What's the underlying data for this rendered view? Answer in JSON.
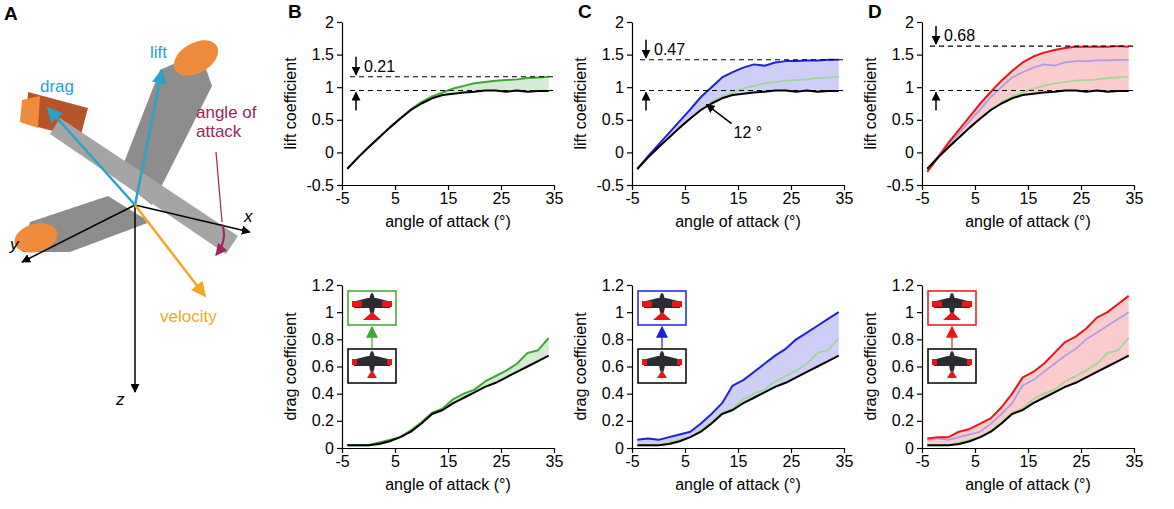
{
  "panel_labels": [
    "A",
    "B",
    "C",
    "D"
  ],
  "diagram": {
    "labels": {
      "drag": "drag",
      "lift": "lift",
      "angle_of_attack": "angle of attack",
      "velocity": "velocity",
      "x": "x",
      "y": "y",
      "z": "z"
    }
  },
  "chart_data": [
    {
      "type": "line",
      "x_label": "angle of attack (°)",
      "y_label": "lift coefficient",
      "x": [
        -4,
        -2,
        0,
        2,
        4,
        6,
        8,
        10,
        12,
        14,
        16,
        18,
        20,
        22,
        24,
        26,
        28,
        30,
        32,
        34
      ],
      "series": [
        {
          "color": "#000000",
          "values": [
            -0.25,
            -0.08,
            0.08,
            0.23,
            0.38,
            0.52,
            0.65,
            0.75,
            0.83,
            0.88,
            0.9,
            0.92,
            0.93,
            0.95,
            0.95,
            0.93,
            0.95,
            0.93,
            0.94,
            0.94
          ]
        },
        {
          "color": "#3fa535",
          "values": [
            -0.25,
            -0.08,
            0.08,
            0.23,
            0.38,
            0.52,
            0.66,
            0.77,
            0.86,
            0.92,
            0.98,
            1.02,
            1.06,
            1.08,
            1.1,
            1.11,
            1.12,
            1.14,
            1.15,
            1.16
          ]
        }
      ],
      "xlim": [
        -5,
        35
      ],
      "xticks": [
        -5,
        5,
        15,
        25,
        35
      ],
      "ylim": [
        -0.5,
        2
      ],
      "yticks": [
        -0.5,
        0,
        0.5,
        1,
        1.5,
        2
      ],
      "annotations": [
        {
          "text": "0.21",
          "y": [
            0.95,
            1.16
          ]
        }
      ]
    },
    {
      "type": "line",
      "x_label": "angle of attack (°)",
      "y_label": "drag coefficient",
      "x": [
        -4,
        -2,
        0,
        2,
        4,
        6,
        8,
        10,
        12,
        14,
        16,
        18,
        20,
        22,
        24,
        26,
        28,
        30,
        32,
        34
      ],
      "series": [
        {
          "color": "#000000",
          "values": [
            0.02,
            0.02,
            0.02,
            0.03,
            0.05,
            0.08,
            0.12,
            0.18,
            0.25,
            0.28,
            0.33,
            0.37,
            0.41,
            0.45,
            0.48,
            0.52,
            0.56,
            0.6,
            0.64,
            0.68
          ]
        },
        {
          "color": "#3fa535",
          "values": [
            0.02,
            0.02,
            0.02,
            0.04,
            0.06,
            0.08,
            0.13,
            0.19,
            0.26,
            0.29,
            0.36,
            0.4,
            0.43,
            0.49,
            0.53,
            0.57,
            0.62,
            0.7,
            0.72,
            0.81
          ]
        }
      ],
      "xlim": [
        -5,
        35
      ],
      "xticks": [
        -5,
        5,
        15,
        25,
        35
      ],
      "ylim": [
        0,
        1.2
      ],
      "yticks": [
        0,
        0.2,
        0.4,
        0.6,
        0.8,
        1,
        1.2
      ]
    },
    {
      "type": "line",
      "x_label": "angle of attack (°)",
      "y_label": "lift coefficient",
      "x": [
        -4,
        -2,
        0,
        2,
        4,
        6,
        8,
        10,
        12,
        14,
        16,
        18,
        20,
        22,
        24,
        26,
        28,
        30,
        32,
        34
      ],
      "series": [
        {
          "color": "#000000",
          "values": [
            -0.25,
            -0.08,
            0.08,
            0.23,
            0.38,
            0.52,
            0.65,
            0.75,
            0.83,
            0.88,
            0.9,
            0.92,
            0.93,
            0.95,
            0.95,
            0.93,
            0.95,
            0.93,
            0.94,
            0.94
          ]
        },
        {
          "color": "#9fd88f",
          "values": [
            -0.25,
            -0.08,
            0.08,
            0.23,
            0.38,
            0.52,
            0.66,
            0.77,
            0.86,
            0.92,
            0.98,
            1.02,
            1.06,
            1.08,
            1.1,
            1.11,
            1.12,
            1.14,
            1.15,
            1.16
          ]
        },
        {
          "color": "#1f1fe0",
          "values": [
            -0.26,
            -0.06,
            0.12,
            0.3,
            0.48,
            0.66,
            0.85,
            1.0,
            1.15,
            1.23,
            1.3,
            1.35,
            1.33,
            1.38,
            1.4,
            1.4,
            1.41,
            1.41,
            1.42,
            1.42
          ]
        }
      ],
      "xlim": [
        -5,
        35
      ],
      "xticks": [
        -5,
        5,
        15,
        25,
        35
      ],
      "ylim": [
        -0.5,
        2
      ],
      "yticks": [
        -0.5,
        0,
        0.5,
        1,
        1.5,
        2
      ],
      "annotations": [
        {
          "text": "0.47",
          "y": [
            0.95,
            1.42
          ]
        },
        {
          "text": "12 °",
          "x": 8.5,
          "y": 0.78
        }
      ]
    },
    {
      "type": "line",
      "x_label": "angle of attack (°)",
      "y_label": "drag coefficient",
      "x": [
        -4,
        -2,
        0,
        2,
        4,
        6,
        8,
        10,
        12,
        14,
        16,
        18,
        20,
        22,
        24,
        26,
        28,
        30,
        32,
        34
      ],
      "series": [
        {
          "color": "#000000",
          "values": [
            0.02,
            0.02,
            0.02,
            0.03,
            0.05,
            0.08,
            0.12,
            0.18,
            0.25,
            0.28,
            0.33,
            0.37,
            0.41,
            0.45,
            0.48,
            0.52,
            0.56,
            0.6,
            0.64,
            0.68
          ]
        },
        {
          "color": "#9fd88f",
          "values": [
            0.02,
            0.02,
            0.02,
            0.04,
            0.06,
            0.08,
            0.13,
            0.19,
            0.26,
            0.29,
            0.36,
            0.4,
            0.43,
            0.49,
            0.53,
            0.57,
            0.62,
            0.7,
            0.72,
            0.81
          ]
        },
        {
          "color": "#1f1fe0",
          "values": [
            0.06,
            0.07,
            0.06,
            0.08,
            0.1,
            0.12,
            0.18,
            0.25,
            0.33,
            0.46,
            0.5,
            0.56,
            0.62,
            0.68,
            0.73,
            0.8,
            0.85,
            0.9,
            0.95,
            1.0
          ]
        }
      ],
      "xlim": [
        -5,
        35
      ],
      "xticks": [
        -5,
        5,
        15,
        25,
        35
      ],
      "ylim": [
        0,
        1.2
      ],
      "yticks": [
        0,
        0.2,
        0.4,
        0.6,
        0.8,
        1,
        1.2
      ]
    },
    {
      "type": "line",
      "x_label": "angle of attack (°)",
      "y_label": "lift coefficient",
      "x": [
        -4,
        -2,
        0,
        2,
        4,
        6,
        8,
        10,
        12,
        14,
        16,
        18,
        20,
        22,
        24,
        26,
        28,
        30,
        32,
        34
      ],
      "series": [
        {
          "color": "#000000",
          "values": [
            -0.25,
            -0.08,
            0.08,
            0.23,
            0.38,
            0.52,
            0.65,
            0.75,
            0.83,
            0.88,
            0.9,
            0.92,
            0.93,
            0.95,
            0.95,
            0.93,
            0.95,
            0.93,
            0.94,
            0.94
          ]
        },
        {
          "color": "#9fd88f",
          "values": [
            -0.25,
            -0.08,
            0.08,
            0.23,
            0.38,
            0.52,
            0.66,
            0.77,
            0.86,
            0.92,
            0.98,
            1.02,
            1.06,
            1.08,
            1.1,
            1.11,
            1.12,
            1.14,
            1.15,
            1.16
          ]
        },
        {
          "color": "#ab9de6",
          "values": [
            -0.26,
            -0.06,
            0.12,
            0.3,
            0.48,
            0.66,
            0.85,
            1.0,
            1.15,
            1.23,
            1.3,
            1.35,
            1.33,
            1.38,
            1.4,
            1.4,
            1.41,
            1.41,
            1.42,
            1.42
          ]
        },
        {
          "color": "#e8151b",
          "values": [
            -0.3,
            -0.08,
            0.15,
            0.35,
            0.55,
            0.75,
            0.93,
            1.1,
            1.25,
            1.38,
            1.47,
            1.53,
            1.57,
            1.6,
            1.62,
            1.62,
            1.62,
            1.62,
            1.63,
            1.62
          ]
        }
      ],
      "xlim": [
        -5,
        35
      ],
      "xticks": [
        -5,
        5,
        15,
        25,
        35
      ],
      "ylim": [
        -0.5,
        2
      ],
      "yticks": [
        -0.5,
        0,
        0.5,
        1,
        1.5,
        2
      ],
      "annotations": [
        {
          "text": "0.68",
          "y": [
            0.95,
            1.63
          ]
        }
      ]
    },
    {
      "type": "line",
      "x_label": "angle of attack (°)",
      "y_label": "drag coefficient",
      "x": [
        -4,
        -2,
        0,
        2,
        4,
        6,
        8,
        10,
        12,
        14,
        16,
        18,
        20,
        22,
        24,
        26,
        28,
        30,
        32,
        34
      ],
      "series": [
        {
          "color": "#000000",
          "values": [
            0.02,
            0.02,
            0.02,
            0.03,
            0.05,
            0.08,
            0.12,
            0.18,
            0.25,
            0.28,
            0.33,
            0.37,
            0.41,
            0.45,
            0.48,
            0.52,
            0.56,
            0.6,
            0.64,
            0.68
          ]
        },
        {
          "color": "#9fd88f",
          "values": [
            0.02,
            0.02,
            0.02,
            0.04,
            0.06,
            0.08,
            0.13,
            0.19,
            0.26,
            0.29,
            0.36,
            0.4,
            0.43,
            0.49,
            0.53,
            0.57,
            0.62,
            0.7,
            0.72,
            0.81
          ]
        },
        {
          "color": "#ab9de6",
          "values": [
            0.06,
            0.07,
            0.06,
            0.08,
            0.1,
            0.12,
            0.18,
            0.25,
            0.33,
            0.46,
            0.5,
            0.56,
            0.62,
            0.68,
            0.73,
            0.8,
            0.85,
            0.9,
            0.95,
            1.0
          ]
        },
        {
          "color": "#e8151b",
          "values": [
            0.07,
            0.08,
            0.08,
            0.12,
            0.14,
            0.18,
            0.22,
            0.3,
            0.4,
            0.52,
            0.56,
            0.62,
            0.7,
            0.78,
            0.82,
            0.88,
            0.96,
            1.0,
            1.06,
            1.12
          ]
        }
      ],
      "xlim": [
        -5,
        35
      ],
      "xticks": [
        -5,
        5,
        15,
        25,
        35
      ],
      "ylim": [
        0,
        1.2
      ],
      "yticks": [
        0,
        0.2,
        0.4,
        0.6,
        0.8,
        1,
        1.2
      ]
    }
  ]
}
